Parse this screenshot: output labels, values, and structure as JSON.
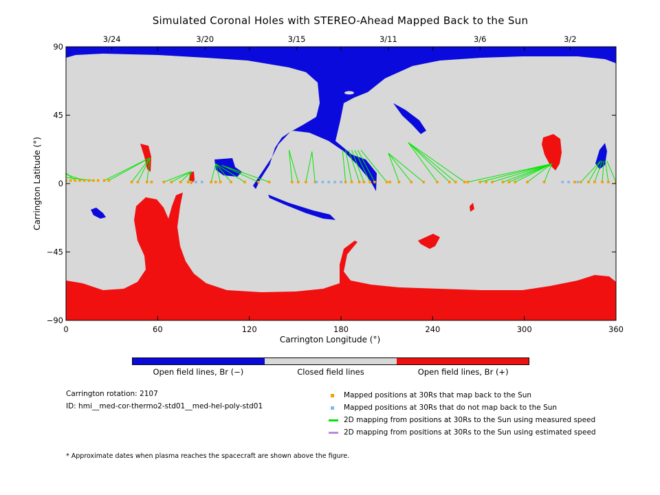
{
  "title": "Simulated Coronal Holes with STEREO-Ahead Mapped Back to the Sun",
  "chart_data": {
    "type": "map",
    "title": "Simulated Coronal Holes with STEREO-Ahead Mapped Back to the Sun",
    "xlabel": "Carrington Longitude (°)",
    "ylabel": "Carrington Latitude (°)",
    "xlim": [
      0,
      360
    ],
    "ylim": [
      -90,
      90
    ],
    "x_ticks": [
      "0",
      "60",
      "120",
      "180",
      "240",
      "300",
      "360"
    ],
    "y_ticks": [
      "90",
      "45",
      "0",
      "-45",
      "-90"
    ],
    "top_date_labels": [
      {
        "label": "3/24",
        "lon": 30
      },
      {
        "label": "3/20",
        "lon": 91
      },
      {
        "label": "3/15",
        "lon": 151
      },
      {
        "label": "3/11",
        "lon": 211
      },
      {
        "label": "3/6",
        "lon": 271
      },
      {
        "label": "3/2",
        "lon": 330
      }
    ],
    "colors": {
      "open_negative": "#0a0adc",
      "closed": "#d8d8d8",
      "open_positive": "#f01010",
      "mapped_point": "#f0a000",
      "unmapped_point": "#80b8ee",
      "measured_line": "#00e600",
      "estimated_line": "#bb88dd"
    },
    "mapped_positions": [
      [
        0,
        2
      ],
      [
        3,
        2
      ],
      [
        6,
        2
      ],
      [
        9,
        2
      ],
      [
        12,
        2
      ],
      [
        15,
        2
      ],
      [
        18,
        2
      ],
      [
        21,
        2
      ],
      [
        25,
        2
      ],
      [
        28,
        2
      ],
      [
        43,
        1
      ],
      [
        47,
        1
      ],
      [
        53,
        1
      ],
      [
        56,
        1
      ],
      [
        64,
        1
      ],
      [
        69,
        1
      ],
      [
        75,
        1
      ],
      [
        80,
        1
      ],
      [
        82,
        1
      ],
      [
        95,
        1
      ],
      [
        98,
        1
      ],
      [
        101,
        1
      ],
      [
        108,
        1
      ],
      [
        117,
        1
      ],
      [
        126,
        1
      ],
      [
        133,
        1
      ],
      [
        148,
        1
      ],
      [
        152,
        1
      ],
      [
        157,
        1
      ],
      [
        163,
        1
      ],
      [
        183,
        1
      ],
      [
        187,
        1
      ],
      [
        192,
        1
      ],
      [
        195,
        1
      ],
      [
        199,
        1
      ],
      [
        202,
        1
      ],
      [
        210,
        1
      ],
      [
        212,
        1
      ],
      [
        218,
        1
      ],
      [
        226,
        1
      ],
      [
        234,
        1
      ],
      [
        243,
        1
      ],
      [
        251,
        1
      ],
      [
        255,
        1
      ],
      [
        261,
        1
      ],
      [
        263,
        1
      ],
      [
        271,
        1
      ],
      [
        275,
        1
      ],
      [
        279,
        1
      ],
      [
        286,
        1
      ],
      [
        290,
        1
      ],
      [
        294,
        1
      ],
      [
        302,
        1
      ],
      [
        313,
        1
      ],
      [
        333,
        1
      ],
      [
        337,
        1
      ],
      [
        342,
        1
      ],
      [
        346,
        1
      ],
      [
        351,
        1
      ],
      [
        355,
        1
      ],
      [
        360,
        1
      ]
    ],
    "unmapped_positions": [
      [
        85,
        1
      ],
      [
        89,
        1
      ],
      [
        164,
        1
      ],
      [
        168,
        1
      ],
      [
        172,
        1
      ],
      [
        176,
        1
      ],
      [
        180,
        1
      ],
      [
        325,
        1
      ],
      [
        329,
        1
      ],
      [
        335,
        1
      ]
    ],
    "measured_speed_mappings": [
      [
        [
          0,
          2
        ],
        [
          0,
          10
        ]
      ],
      [
        [
          6,
          2
        ],
        [
          0,
          7
        ]
      ],
      [
        [
          12,
          2
        ],
        [
          0,
          6
        ]
      ],
      [
        [
          18,
          2
        ],
        [
          0,
          4
        ]
      ],
      [
        [
          25,
          2
        ],
        [
          55,
          17
        ]
      ],
      [
        [
          28,
          2
        ],
        [
          55,
          17
        ]
      ],
      [
        [
          43,
          1
        ],
        [
          55,
          17
        ]
      ],
      [
        [
          47,
          1
        ],
        [
          55,
          17
        ]
      ],
      [
        [
          53,
          1
        ],
        [
          55,
          17
        ]
      ],
      [
        [
          64,
          1
        ],
        [
          82,
          8
        ]
      ],
      [
        [
          69,
          1
        ],
        [
          82,
          8
        ]
      ],
      [
        [
          75,
          1
        ],
        [
          82,
          8
        ]
      ],
      [
        [
          80,
          1
        ],
        [
          82,
          8
        ]
      ],
      [
        [
          95,
          1
        ],
        [
          98,
          13
        ]
      ],
      [
        [
          101,
          1
        ],
        [
          98,
          13
        ]
      ],
      [
        [
          108,
          1
        ],
        [
          98,
          13
        ]
      ],
      [
        [
          117,
          1
        ],
        [
          98,
          13
        ]
      ],
      [
        [
          126,
          1
        ],
        [
          102,
          12
        ]
      ],
      [
        [
          133,
          1
        ],
        [
          102,
          12
        ]
      ],
      [
        [
          148,
          1
        ],
        [
          146,
          22
        ]
      ],
      [
        [
          152,
          1
        ],
        [
          146,
          22
        ]
      ],
      [
        [
          157,
          1
        ],
        [
          161,
          21
        ]
      ],
      [
        [
          163,
          1
        ],
        [
          161,
          21
        ]
      ],
      [
        [
          183,
          1
        ],
        [
          181,
          22
        ]
      ],
      [
        [
          187,
          1
        ],
        [
          183,
          22
        ]
      ],
      [
        [
          192,
          1
        ],
        [
          185,
          22
        ]
      ],
      [
        [
          195,
          1
        ],
        [
          187,
          22
        ]
      ],
      [
        [
          199,
          1
        ],
        [
          189,
          22
        ]
      ],
      [
        [
          202,
          1
        ],
        [
          191,
          22
        ]
      ],
      [
        [
          210,
          1
        ],
        [
          193,
          22
        ]
      ],
      [
        [
          218,
          1
        ],
        [
          211,
          20
        ]
      ],
      [
        [
          226,
          1
        ],
        [
          211,
          20
        ]
      ],
      [
        [
          234,
          1
        ],
        [
          211,
          20
        ]
      ],
      [
        [
          243,
          1
        ],
        [
          224,
          27
        ]
      ],
      [
        [
          251,
          1
        ],
        [
          224,
          27
        ]
      ],
      [
        [
          255,
          1
        ],
        [
          224,
          27
        ]
      ],
      [
        [
          261,
          1
        ],
        [
          224,
          27
        ]
      ],
      [
        [
          263,
          1
        ],
        [
          318,
          13
        ]
      ],
      [
        [
          271,
          1
        ],
        [
          318,
          13
        ]
      ],
      [
        [
          279,
          1
        ],
        [
          318,
          13
        ]
      ],
      [
        [
          286,
          1
        ],
        [
          318,
          13
        ]
      ],
      [
        [
          290,
          1
        ],
        [
          318,
          13
        ]
      ],
      [
        [
          294,
          1
        ],
        [
          318,
          13
        ]
      ],
      [
        [
          302,
          1
        ],
        [
          318,
          13
        ]
      ],
      [
        [
          313,
          1
        ],
        [
          318,
          13
        ]
      ],
      [
        [
          337,
          1
        ],
        [
          350,
          15
        ]
      ],
      [
        [
          342,
          1
        ],
        [
          350,
          15
        ]
      ],
      [
        [
          346,
          1
        ],
        [
          351,
          15
        ]
      ],
      [
        [
          351,
          1
        ],
        [
          352,
          15
        ]
      ],
      [
        [
          355,
          1
        ],
        [
          353,
          15
        ]
      ],
      [
        [
          360,
          1
        ],
        [
          354,
          15
        ]
      ]
    ]
  },
  "colorbar": {
    "labels": [
      "Open field lines, Br (−)",
      "Closed field lines",
      "Open field lines, Br (+)"
    ]
  },
  "info": {
    "rotation": "Carrington rotation: 2107",
    "id": "ID: hmi__med-cor-thermo2-std01__med-hel-poly-std01"
  },
  "legend": {
    "mapped": "Mapped positions at 30Rs that map back to the Sun",
    "unmapped": "Mapped positions at 30Rs that do not map back to the Sun",
    "measured": "2D mapping from positions at 30Rs to the Sun using measured speed",
    "estimated": "2D mapping from positions at 30Rs to the Sun using estimated speed"
  },
  "footnote": "* Approximate dates when plasma reaches the spacecraft are shown above the figure."
}
